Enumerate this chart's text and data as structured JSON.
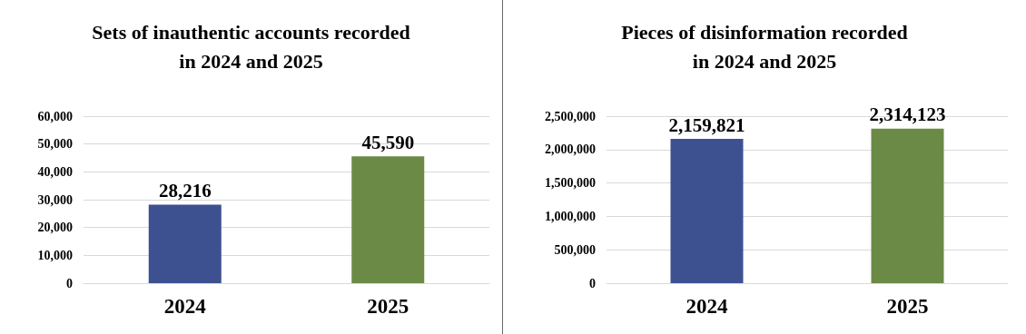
{
  "chart_data": [
    {
      "type": "bar",
      "title": "Sets of inauthentic accounts recorded\nin 2024 and 2025",
      "categories": [
        "2024",
        "2025"
      ],
      "values": [
        28216,
        45590
      ],
      "value_labels": [
        "28,216",
        "45,590"
      ],
      "colors": [
        "#3d5191",
        "#6b8a46"
      ],
      "ylim": [
        0,
        60000
      ],
      "yticks": [
        0,
        {
          "value": 10000,
          "label": "10,000"
        },
        {
          "value": 20000,
          "label": "20,000"
        },
        {
          "value": 30000,
          "label": "30,000"
        },
        {
          "value": 40000,
          "label": "40,000"
        },
        {
          "value": 50000,
          "label": "50,000"
        },
        {
          "value": 60000,
          "label": "60,000"
        }
      ],
      "grid": "y"
    },
    {
      "type": "bar",
      "title": "Pieces of disinformation recorded\nin 2024 and 2025",
      "categories": [
        "2024",
        "2025"
      ],
      "values": [
        2159821,
        2314123
      ],
      "value_labels": [
        "2,159,821",
        "2,314,123"
      ],
      "colors": [
        "#3d5191",
        "#6b8a46"
      ],
      "ylim": [
        0,
        2500000
      ],
      "yticks": [
        0,
        {
          "value": 500000,
          "label": "500,000"
        },
        {
          "value": 1000000,
          "label": "1,000,000"
        },
        {
          "value": 1500000,
          "label": "1,500,000"
        },
        {
          "value": 2000000,
          "label": "2,000,000"
        },
        {
          "value": 2500000,
          "label": "2,500,000"
        }
      ],
      "grid": "y"
    }
  ]
}
